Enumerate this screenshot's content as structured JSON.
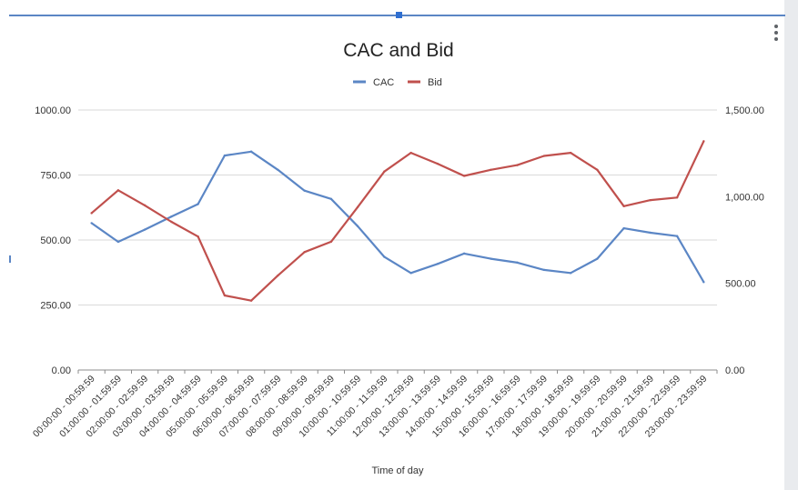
{
  "colors": {
    "cac": "#5b86c5",
    "bid": "#c0504d",
    "grid": "#d9d9d9",
    "axis": "#333333"
  },
  "icons": {
    "menu": "more-vert-icon"
  },
  "chart_data": {
    "type": "line",
    "title": "CAC and Bid",
    "xlabel": "Time of day",
    "ylabel": "",
    "y2label": "",
    "legend_position": "top",
    "grid": true,
    "categories": [
      "00:00:00 - 00:59:59",
      "01:00:00 - 01:59:59",
      "02:00:00 - 02:59:59",
      "03:00:00 - 03:59:59",
      "04:00:00 - 04:59:59",
      "05:00:00 - 05:59:59",
      "06:00:00 - 06:59:59",
      "07:00:00 - 07:59:59",
      "08:00:00 - 08:59:59",
      "09:00:00 - 09:59:59",
      "10:00:00 - 10:59:59",
      "11:00:00 - 11:59:59",
      "12:00:00 - 12:59:59",
      "13:00:00 - 13:59:59",
      "14:00:00 - 14:59:59",
      "15:00:00 - 15:59:59",
      "16:00:00 - 16:59:59",
      "17:00:00 - 17:59:59",
      "18:00:00 - 18:59:59",
      "19:00:00 - 19:59:59",
      "20:00:00 - 20:59:59",
      "21:00:00 - 21:59:59",
      "22:00:00 - 22:59:59",
      "23:00:00 - 23:59:59"
    ],
    "ylim": [
      0,
      1000
    ],
    "y2lim": [
      0,
      1500
    ],
    "yticks": [
      "0.00",
      "250.00",
      "500.00",
      "750.00",
      "1000.00"
    ],
    "y2ticks": [
      "0.00",
      "500.00",
      "1,000.00",
      "1,500.00"
    ],
    "series": [
      {
        "name": "CAC",
        "axis": "left",
        "values": [
          565,
          493,
          540,
          590,
          638,
          825,
          840,
          770,
          690,
          658,
          553,
          435,
          373,
          408,
          448,
          428,
          413,
          385,
          373,
          428,
          545,
          528,
          515,
          338
        ]
      },
      {
        "name": "Bid",
        "axis": "right",
        "values": [
          905,
          1037,
          950,
          855,
          770,
          430,
          400,
          545,
          680,
          740,
          940,
          1145,
          1253,
          1190,
          1120,
          1155,
          1182,
          1235,
          1253,
          1155,
          945,
          980,
          995,
          1320
        ]
      }
    ]
  }
}
